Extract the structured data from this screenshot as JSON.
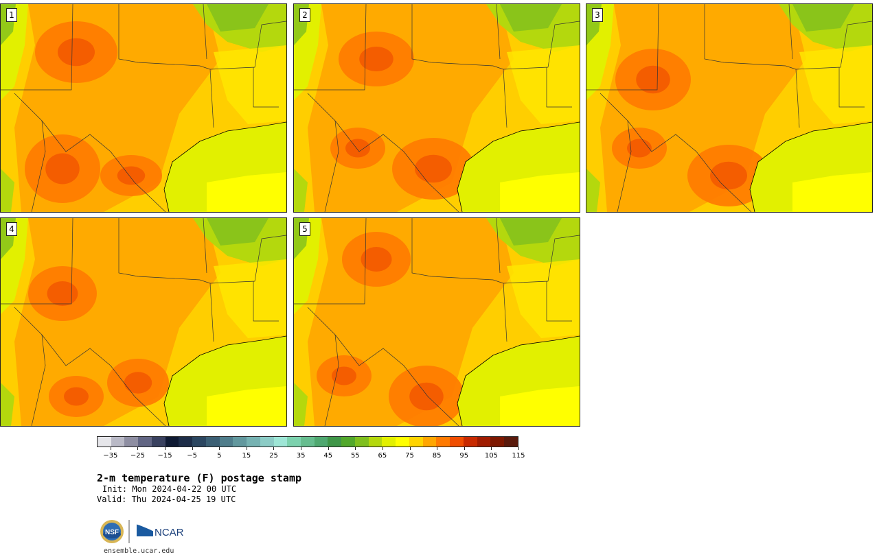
{
  "panels": [
    {
      "label": "1"
    },
    {
      "label": "2"
    },
    {
      "label": "3"
    },
    {
      "label": "4"
    },
    {
      "label": "5"
    }
  ],
  "colorbar": {
    "colors": [
      "#e6e6ea",
      "#b9b9c6",
      "#8e8ea2",
      "#626684",
      "#39415f",
      "#0f1a33",
      "#1d2d48",
      "#2b4660",
      "#3b5f74",
      "#4f7d8b",
      "#62989e",
      "#76b2b2",
      "#8cccc6",
      "#9ee6d6",
      "#7cd2ae",
      "#66bd8f",
      "#4fa870",
      "#3f9648",
      "#52a82b",
      "#7fbf1e",
      "#b4d80d",
      "#e2f000",
      "#ffff00",
      "#ffd400",
      "#ffa600",
      "#ff7a00",
      "#f04e00",
      "#c82a00",
      "#a01c00",
      "#7d1800",
      "#5a1a0c"
    ],
    "tick_labels": [
      "−35",
      "−25",
      "−15",
      "−5",
      "5",
      "15",
      "25",
      "35",
      "45",
      "55",
      "65",
      "75",
      "85",
      "95",
      "105",
      "115"
    ]
  },
  "title": "2-m temperature (F) postage stamp",
  "init_line": "Init: Mon 2024-04-22 00 UTC",
  "valid_line": "Valid: Thu 2024-04-25 19 UTC",
  "logo": {
    "nsf": "NSF",
    "ncar": "NCAR"
  },
  "site": "ensemble.ucar.edu"
}
